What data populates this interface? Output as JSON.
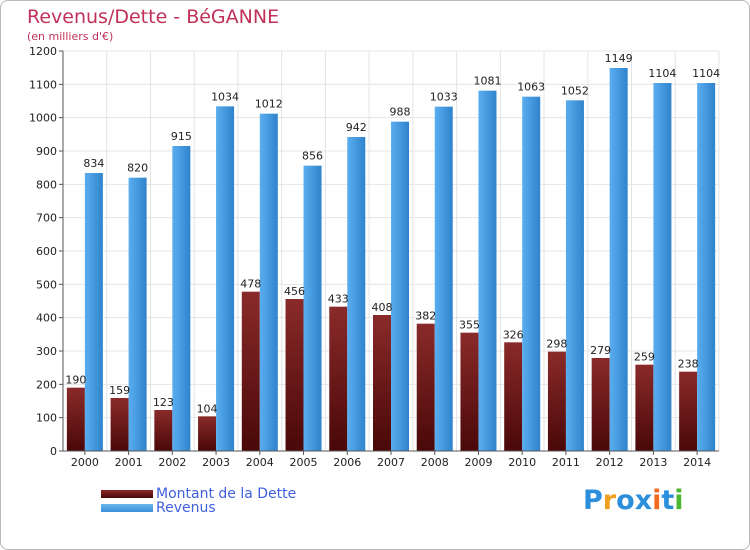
{
  "header": {
    "title": "Revenus/Dette - BéGANNE",
    "subtitle": "(en milliers d'€)"
  },
  "legend": {
    "debt_label": "Montant de la Dette",
    "revenue_label": "Revenus"
  },
  "logo": {
    "letters": [
      "P",
      "r",
      "o",
      "x",
      "i",
      "t",
      "i"
    ],
    "colors": [
      "#2c8fdc",
      "#f0a020",
      "#2c8fdc",
      "#2c8fdc",
      "#f06a20",
      "#2c8fdc",
      "#4cb830"
    ]
  },
  "colors": {
    "title": "#c0305a",
    "debt_top": "#8a2a2a",
    "debt_bottom": "#4a0808",
    "revenue_left": "#5aaeef",
    "revenue_right": "#2f83cc",
    "grid": "#e4e4e4"
  },
  "chart_data": {
    "type": "bar",
    "title": "Revenus/Dette - BéGANNE",
    "ylabel": "(en milliers d'€)",
    "xlabel": "",
    "ylim": [
      0,
      1200
    ],
    "yticks": [
      0,
      100,
      200,
      300,
      400,
      500,
      600,
      700,
      800,
      900,
      1000,
      1100,
      1200
    ],
    "grid": true,
    "legend_position": "bottom-left",
    "categories": [
      "2000",
      "2001",
      "2002",
      "2003",
      "2004",
      "2005",
      "2006",
      "2007",
      "2008",
      "2009",
      "2010",
      "2011",
      "2012",
      "2013",
      "2014"
    ],
    "series": [
      {
        "name": "Montant de la Dette",
        "values": [
          190,
          159,
          123,
          104,
          478,
          456,
          433,
          408,
          382,
          355,
          326,
          298,
          279,
          259,
          238
        ]
      },
      {
        "name": "Revenus",
        "values": [
          834,
          820,
          915,
          1034,
          1012,
          856,
          942,
          988,
          1033,
          1081,
          1063,
          1052,
          1149,
          1104,
          1104
        ]
      }
    ]
  }
}
